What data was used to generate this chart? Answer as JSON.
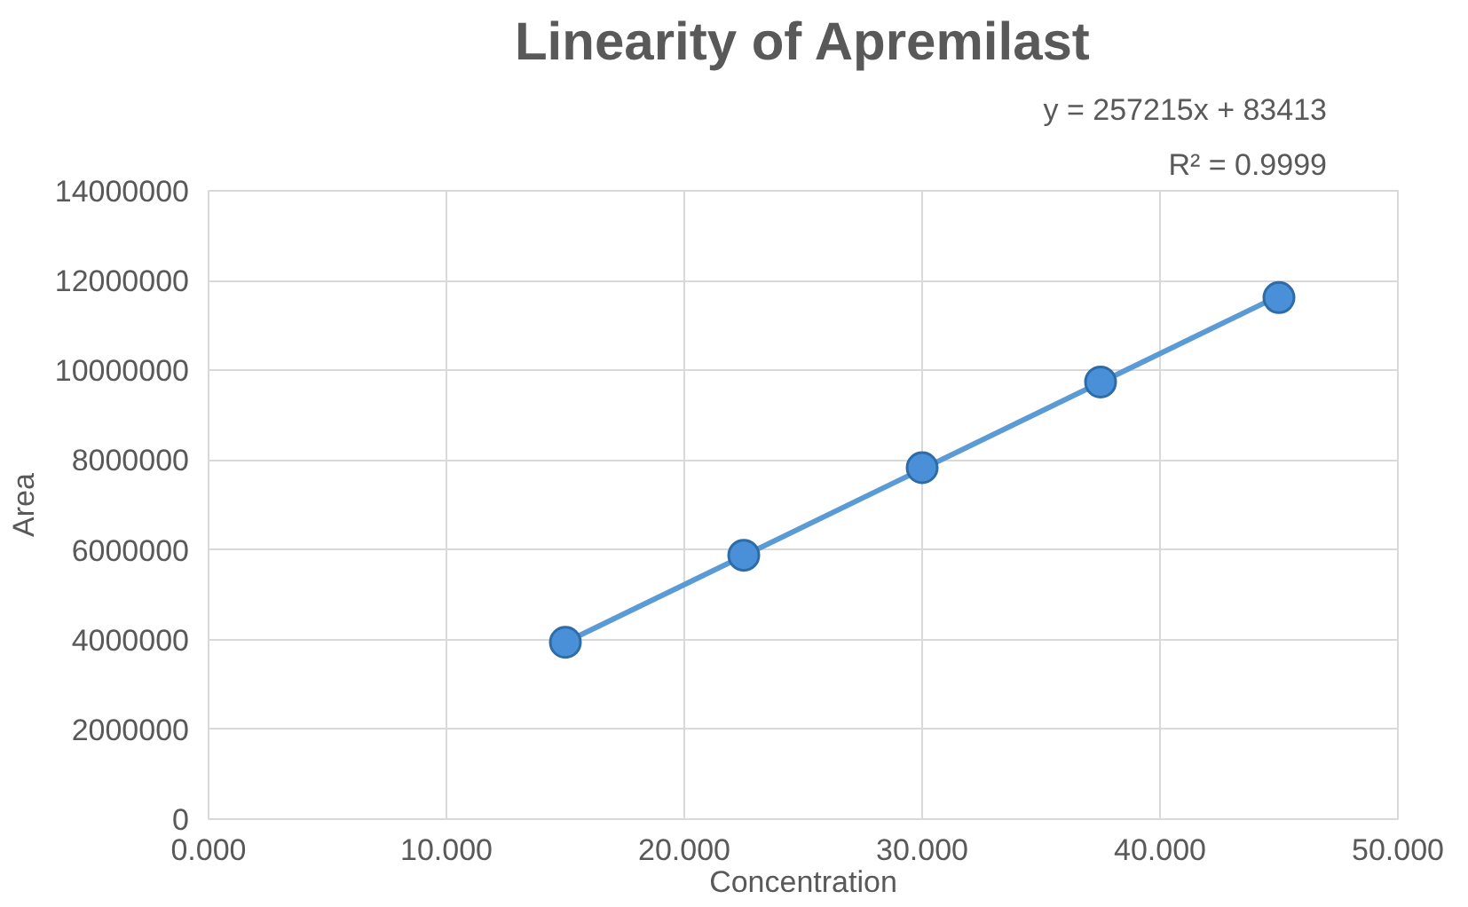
{
  "chart_data": {
    "type": "scatter",
    "title": "Linearity of Apremilast",
    "xlabel": "Concentration",
    "ylabel": "Area",
    "annotations": [
      "y = 257215x + 83413",
      "R² = 0.9999"
    ],
    "xlim": [
      0,
      50
    ],
    "ylim": [
      0,
      14000000
    ],
    "xticks": [
      {
        "value": 0,
        "label": "0.000"
      },
      {
        "value": 10,
        "label": "10.000"
      },
      {
        "value": 20,
        "label": "20.000"
      },
      {
        "value": 30,
        "label": "30.000"
      },
      {
        "value": 40,
        "label": "40.000"
      },
      {
        "value": 50,
        "label": "50.000"
      }
    ],
    "yticks": [
      0,
      2000000,
      4000000,
      6000000,
      8000000,
      10000000,
      12000000,
      14000000
    ],
    "grid": true,
    "series": [
      {
        "marker": "circle",
        "color": "#4a90d9",
        "x": [
          15,
          22.5,
          30,
          37.5,
          45
        ],
        "values": [
          3940000,
          5880000,
          7830000,
          9740000,
          11620000
        ]
      },
      {
        "type": "line",
        "marker": "none",
        "color": "#5b9bd5",
        "line_style": "solid",
        "x": [
          15,
          45
        ],
        "values": [
          3940000,
          11660000
        ]
      }
    ]
  }
}
